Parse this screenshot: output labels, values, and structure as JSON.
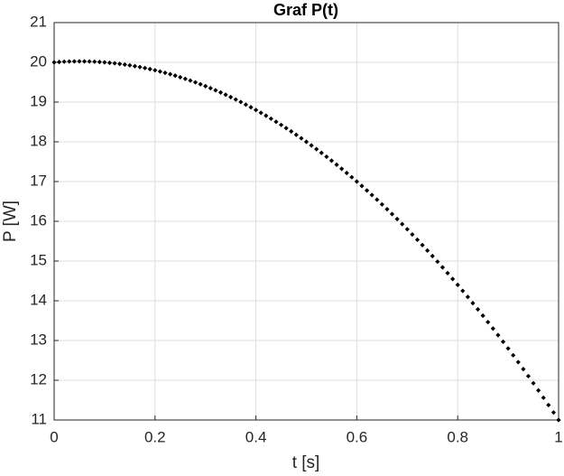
{
  "chart_data": {
    "type": "scatter",
    "title": "Graf P(t)",
    "x_label": "t [s]",
    "y_label": "P [W]",
    "x": [
      0,
      0.01,
      0.02,
      0.03,
      0.04,
      0.05,
      0.06,
      0.07,
      0.08,
      0.09,
      0.1,
      0.11,
      0.12,
      0.13,
      0.14,
      0.15,
      0.16,
      0.17,
      0.18,
      0.19,
      0.2,
      0.21,
      0.22,
      0.23,
      0.24,
      0.25,
      0.26,
      0.27,
      0.28,
      0.29,
      0.3,
      0.31,
      0.32,
      0.33,
      0.34,
      0.35,
      0.36,
      0.37,
      0.38,
      0.39,
      0.4,
      0.41,
      0.42,
      0.43,
      0.44,
      0.45,
      0.46,
      0.47,
      0.48,
      0.49,
      0.5,
      0.51,
      0.52,
      0.53,
      0.54,
      0.55,
      0.56,
      0.57,
      0.58,
      0.59,
      0.6,
      0.61,
      0.62,
      0.63,
      0.64,
      0.65,
      0.66,
      0.67,
      0.68,
      0.69,
      0.7,
      0.71,
      0.72,
      0.73,
      0.74,
      0.75,
      0.76,
      0.77,
      0.78,
      0.79,
      0.8,
      0.81,
      0.82,
      0.83,
      0.84,
      0.85,
      0.86,
      0.87,
      0.88,
      0.89,
      0.9,
      0.91,
      0.92,
      0.93,
      0.94,
      0.95,
      0.96,
      0.97,
      0.98,
      0.99,
      1
    ],
    "values": [
      20,
      20.009,
      20.016,
      20.021,
      20.024,
      20.025,
      20.024,
      20.021,
      20.016,
      20.009,
      20,
      19.989,
      19.976,
      19.961,
      19.944,
      19.925,
      19.904,
      19.881,
      19.856,
      19.829,
      19.8,
      19.769,
      19.736,
      19.701,
      19.664,
      19.625,
      19.584,
      19.541,
      19.496,
      19.449,
      19.4,
      19.349,
      19.296,
      19.241,
      19.184,
      19.125,
      19.064,
      19.001,
      18.936,
      18.869,
      18.8,
      18.729,
      18.656,
      18.581,
      18.504,
      18.425,
      18.344,
      18.261,
      18.176,
      18.089,
      18,
      17.909,
      17.816,
      17.721,
      17.624,
      17.525,
      17.424,
      17.321,
      17.216,
      17.109,
      17,
      16.889,
      16.776,
      16.661,
      16.544,
      16.425,
      16.304,
      16.181,
      16.056,
      15.929,
      15.8,
      15.669,
      15.536,
      15.401,
      15.264,
      15.125,
      14.984,
      14.841,
      14.696,
      14.549,
      14.4,
      14.249,
      14.096,
      13.941,
      13.784,
      13.625,
      13.464,
      13.301,
      13.136,
      12.969,
      12.8,
      12.629,
      12.456,
      12.281,
      12.104,
      11.925,
      11.744,
      11.561,
      11.376,
      11.189,
      11
    ],
    "color": "#000000",
    "xlim": [
      0,
      1
    ],
    "xticks": [
      0,
      0.2,
      0.4,
      0.6,
      0.8,
      1
    ],
    "ylim": [
      11,
      21
    ],
    "yticks": [
      11,
      12,
      13,
      14,
      15,
      16,
      17,
      18,
      19,
      20,
      21
    ],
    "grid": true
  }
}
